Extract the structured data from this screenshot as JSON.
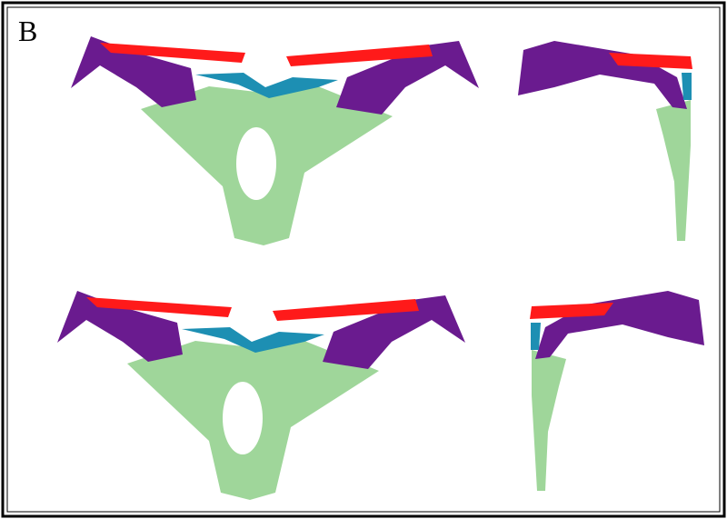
{
  "panel_label": "B"
}
